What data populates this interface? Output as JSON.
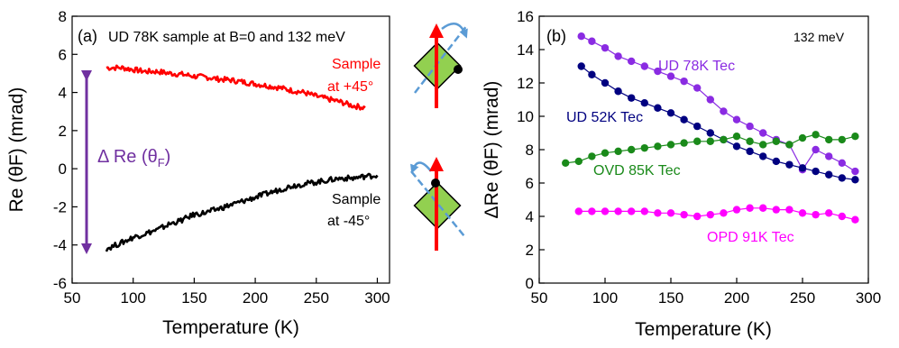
{
  "chart_data": [
    {
      "panel": "(a)",
      "type": "line",
      "title": "UD 78K sample at B=0 and 132 meV",
      "xlabel": "Temperature (K)",
      "ylabel": "Re (θF) (mrad)",
      "xlim": [
        50,
        310
      ],
      "ylim": [
        -6,
        8
      ],
      "xticks": [
        50,
        100,
        150,
        200,
        250,
        300
      ],
      "yticks": [
        -6,
        -4,
        -2,
        0,
        2,
        4,
        6,
        8
      ],
      "grid": false,
      "series": [
        {
          "name": "Sample at +45°",
          "color": "#ff0000",
          "x": [
            78,
            90,
            100,
            110,
            120,
            130,
            140,
            150,
            160,
            170,
            180,
            190,
            200,
            210,
            220,
            230,
            240,
            250,
            260,
            270,
            280,
            290
          ],
          "y": [
            5.3,
            5.3,
            5.2,
            5.1,
            5.1,
            5.0,
            4.95,
            4.85,
            4.8,
            4.7,
            4.65,
            4.55,
            4.45,
            4.35,
            4.25,
            4.1,
            4.0,
            3.8,
            3.65,
            3.5,
            3.3,
            3.2
          ]
        },
        {
          "name": "Sample at -45°",
          "color": "#000000",
          "x": [
            78,
            90,
            100,
            110,
            120,
            130,
            140,
            150,
            160,
            170,
            180,
            190,
            200,
            210,
            220,
            230,
            240,
            250,
            260,
            270,
            280,
            290,
            300
          ],
          "y": [
            -4.2,
            -3.9,
            -3.6,
            -3.4,
            -3.2,
            -2.9,
            -2.7,
            -2.4,
            -2.3,
            -2.1,
            -1.9,
            -1.7,
            -1.5,
            -1.3,
            -1.1,
            -0.9,
            -0.8,
            -0.7,
            -0.6,
            -0.5,
            -0.5,
            -0.4,
            -0.35
          ]
        }
      ],
      "annotations": {
        "label_plus": [
          "Sample",
          "at +45°"
        ],
        "label_minus": [
          "Sample",
          "at -45°"
        ],
        "delta_label": "Δ Re (θ",
        "delta_sub": "F",
        "delta_close": ")"
      }
    },
    {
      "panel": "(b)",
      "type": "scatter",
      "title": "132 meV",
      "xlabel": "Temperature (K)",
      "ylabel": "ΔRe (θF) (mrad)",
      "xlim": [
        50,
        300
      ],
      "ylim": [
        0,
        16
      ],
      "xticks": [
        50,
        100,
        150,
        200,
        250,
        300
      ],
      "yticks": [
        0,
        2,
        4,
        6,
        8,
        10,
        12,
        14,
        16
      ],
      "grid": false,
      "series": [
        {
          "name": "UD 78K Tec",
          "color": "#8a2be2",
          "x": [
            82,
            90,
            100,
            110,
            120,
            130,
            140,
            150,
            160,
            170,
            180,
            190,
            200,
            210,
            220,
            230,
            240,
            250,
            260,
            270,
            280,
            290
          ],
          "y": [
            14.8,
            14.5,
            14.1,
            13.6,
            13.3,
            13.0,
            12.7,
            12.4,
            12.1,
            11.7,
            11.0,
            10.3,
            9.8,
            9.4,
            9.0,
            8.6,
            8.3,
            6.8,
            8.0,
            7.6,
            7.2,
            6.7
          ]
        },
        {
          "name": "UD 52K Tec",
          "color": "#000080",
          "x": [
            82,
            90,
            100,
            110,
            120,
            130,
            140,
            150,
            160,
            170,
            180,
            190,
            200,
            210,
            220,
            230,
            240,
            250,
            260,
            270,
            280,
            290
          ],
          "y": [
            13.0,
            12.5,
            12.0,
            11.5,
            11.1,
            10.8,
            10.5,
            10.2,
            9.8,
            9.4,
            9.0,
            8.6,
            8.2,
            7.9,
            7.6,
            7.3,
            7.1,
            6.9,
            6.7,
            6.5,
            6.3,
            6.2
          ]
        },
        {
          "name": "OVD 85K Tec",
          "color": "#1a8a1a",
          "x": [
            70,
            80,
            90,
            100,
            110,
            120,
            130,
            140,
            150,
            160,
            170,
            180,
            190,
            200,
            210,
            220,
            230,
            240,
            250,
            260,
            270,
            280,
            290
          ],
          "y": [
            7.2,
            7.3,
            7.6,
            7.8,
            7.9,
            8.0,
            8.1,
            8.2,
            8.3,
            8.4,
            8.5,
            8.5,
            8.6,
            8.8,
            8.5,
            8.3,
            8.5,
            8.3,
            8.7,
            8.9,
            8.6,
            8.6,
            8.8
          ]
        },
        {
          "name": "OPD 91K Tec",
          "color": "#ff00ff",
          "x": [
            80,
            90,
            100,
            110,
            120,
            130,
            140,
            150,
            160,
            170,
            180,
            190,
            200,
            210,
            220,
            230,
            240,
            250,
            260,
            270,
            280,
            290
          ],
          "y": [
            4.3,
            4.3,
            4.3,
            4.3,
            4.3,
            4.3,
            4.2,
            4.2,
            4.1,
            4.0,
            4.1,
            4.2,
            4.4,
            4.5,
            4.5,
            4.4,
            4.4,
            4.2,
            4.1,
            4.2,
            4.0,
            3.8
          ]
        }
      ]
    }
  ]
}
